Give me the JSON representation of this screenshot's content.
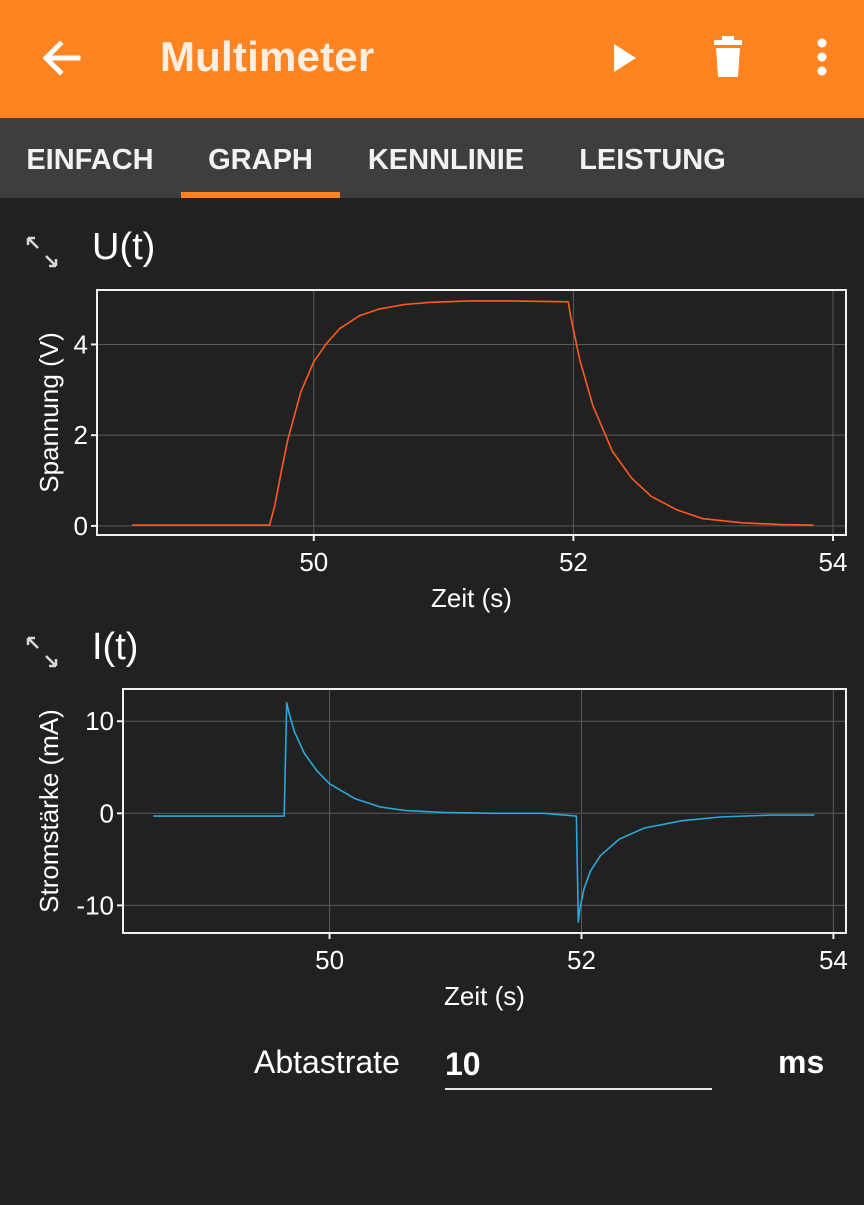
{
  "app_bar": {
    "title": "Multimeter",
    "background_color": "#fe8321",
    "icons": [
      "back-arrow-icon",
      "play-icon",
      "trash-icon",
      "more-vert-icon"
    ]
  },
  "tabs": [
    {
      "label": "EINFACH",
      "active": false
    },
    {
      "label": "GRAPH",
      "active": true
    },
    {
      "label": "KENNLINIE",
      "active": false
    },
    {
      "label": "LEISTUNG",
      "active": false
    }
  ],
  "accent_color": "#fe8321",
  "voltage_section": {
    "title": "U(t)"
  },
  "current_section": {
    "title": "I(t)"
  },
  "chart_data": [
    {
      "type": "line",
      "title": "U(t)",
      "xlabel": "Zeit (s)",
      "ylabel": "Spannung (V)",
      "xlim": [
        48.33,
        54.1
      ],
      "ylim": [
        -0.2,
        5.2
      ],
      "xticks": [
        50,
        52,
        54
      ],
      "yticks": [
        0,
        2,
        4
      ],
      "grid": true,
      "series": [
        {
          "name": "Spannung",
          "color": "#ff5a1f",
          "x": [
            48.6,
            49.4,
            49.66,
            49.7,
            49.75,
            49.8,
            49.9,
            50.0,
            50.1,
            50.2,
            50.35,
            50.5,
            50.7,
            50.9,
            51.2,
            51.5,
            51.96,
            51.98,
            52.05,
            52.15,
            52.3,
            52.45,
            52.6,
            52.8,
            53.0,
            53.3,
            53.6,
            53.85
          ],
          "values": [
            0.02,
            0.02,
            0.02,
            0.45,
            1.2,
            1.9,
            2.95,
            3.62,
            4.03,
            4.35,
            4.63,
            4.78,
            4.88,
            4.93,
            4.96,
            4.96,
            4.94,
            4.6,
            3.65,
            2.65,
            1.65,
            1.05,
            0.65,
            0.35,
            0.16,
            0.07,
            0.03,
            0.02
          ]
        }
      ]
    },
    {
      "type": "line",
      "title": "I(t)",
      "xlabel": "Zeit (s)",
      "ylabel": "Stromstärke (mA)",
      "xlim": [
        48.36,
        54.1
      ],
      "ylim": [
        -13.0,
        13.5
      ],
      "xticks": [
        50,
        52,
        54
      ],
      "yticks": [
        -10,
        0,
        10
      ],
      "ytick_labels": [
        "-10",
        "0",
        "10"
      ],
      "grid": true,
      "series": [
        {
          "name": "Stromstärke",
          "color": "#2aa8dc",
          "x": [
            48.6,
            49.0,
            49.4,
            49.64,
            49.66,
            49.68,
            49.72,
            49.8,
            49.9,
            50.0,
            50.2,
            50.4,
            50.6,
            50.9,
            51.3,
            51.7,
            51.96,
            51.975,
            51.99,
            52.02,
            52.07,
            52.15,
            52.3,
            52.5,
            52.8,
            53.1,
            53.5,
            53.85
          ],
          "values": [
            -0.3,
            -0.3,
            -0.3,
            -0.3,
            12.0,
            10.8,
            8.9,
            6.5,
            4.6,
            3.2,
            1.6,
            0.7,
            0.3,
            0.1,
            0.0,
            0.0,
            -0.3,
            -11.8,
            -10.2,
            -8.2,
            -6.3,
            -4.6,
            -2.8,
            -1.6,
            -0.8,
            -0.4,
            -0.2,
            -0.2
          ]
        }
      ]
    }
  ],
  "sample_rate": {
    "label": "Abtastrate",
    "value": "10",
    "unit": "ms"
  }
}
